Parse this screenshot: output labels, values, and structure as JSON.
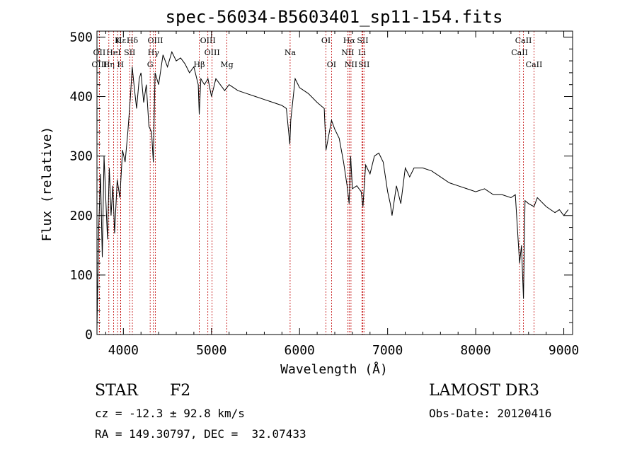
{
  "chart_data": {
    "type": "line",
    "title": "spec-56034-B5603401_sp11-154.fits",
    "xlabel": "Wavelength (Å)",
    "ylabel": "Flux (relative)",
    "xlim": [
      3700,
      9100
    ],
    "ylim": [
      0,
      510
    ],
    "xticks": [
      4000,
      5000,
      6000,
      7000,
      8000,
      9000
    ],
    "yticks": [
      0,
      100,
      200,
      300,
      400,
      500
    ],
    "grid": false,
    "line_color": "#000000",
    "marker_color": "#c00000",
    "series": [
      {
        "x": [
          3700,
          3720,
          3740,
          3760,
          3780,
          3800,
          3820,
          3840,
          3860,
          3880,
          3900,
          3930,
          3960,
          3990,
          4020,
          4050,
          4080,
          4100,
          4120,
          4150,
          4180,
          4200,
          4230,
          4260,
          4290,
          4320,
          4340,
          4360,
          4400,
          4450,
          4500,
          4550,
          4600,
          4650,
          4700,
          4750,
          4800,
          4850,
          4861,
          4880,
          4920,
          4960,
          5000,
          5050,
          5100,
          5150,
          5200,
          5300,
          5400,
          5500,
          5600,
          5700,
          5800,
          5850,
          5890,
          5900,
          5950,
          6000,
          6100,
          6200,
          6280,
          6300,
          6363,
          6400,
          6450,
          6500,
          6540,
          6563,
          6580,
          6600,
          6650,
          6700,
          6720,
          6750,
          6800,
          6850,
          6900,
          6950,
          7000,
          7030,
          7050,
          7100,
          7150,
          7200,
          7250,
          7300,
          7400,
          7500,
          7600,
          7700,
          7800,
          7900,
          8000,
          8100,
          8200,
          8300,
          8400,
          8450,
          8498,
          8520,
          8542,
          8560,
          8600,
          8662,
          8700,
          8800,
          8900,
          8950,
          9000,
          9050
        ],
        "y": [
          10,
          180,
          270,
          130,
          300,
          230,
          160,
          280,
          200,
          250,
          170,
          260,
          230,
          310,
          290,
          340,
          400,
          450,
          420,
          380,
          430,
          440,
          390,
          420,
          350,
          340,
          290,
          440,
          420,
          470,
          450,
          475,
          460,
          465,
          455,
          440,
          450,
          420,
          370,
          430,
          420,
          430,
          400,
          430,
          420,
          410,
          420,
          410,
          405,
          400,
          395,
          390,
          385,
          380,
          320,
          360,
          430,
          415,
          405,
          390,
          380,
          310,
          360,
          345,
          330,
          290,
          250,
          220,
          300,
          245,
          250,
          240,
          215,
          285,
          270,
          300,
          305,
          290,
          240,
          220,
          200,
          250,
          220,
          280,
          265,
          280,
          280,
          275,
          265,
          255,
          250,
          245,
          240,
          245,
          235,
          235,
          230,
          235,
          120,
          150,
          60,
          225,
          220,
          215,
          230,
          215,
          205,
          210,
          200,
          210
        ]
      }
    ],
    "line_markers": [
      {
        "label": "Hδ",
        "x": 4102,
        "row": 0
      },
      {
        "label": "OII",
        "x": 3727,
        "row": 1
      },
      {
        "label": "OIII",
        "x": 3727,
        "row": 2
      },
      {
        "label": "Hη",
        "x": 3835,
        "row": 2
      },
      {
        "label": "K",
        "x": 3934,
        "row": 0
      },
      {
        "label": "HeI",
        "x": 3889,
        "row": 1
      },
      {
        "label": "H",
        "x": 3968,
        "row": 2
      },
      {
        "label": "SII",
        "x": 4072,
        "row": 1
      },
      {
        "label": "Hε",
        "x": 3970,
        "row": 0
      },
      {
        "label": "OIII",
        "x": 4363,
        "row": 0
      },
      {
        "label": "Hγ",
        "x": 4341,
        "row": 1
      },
      {
        "label": "G",
        "x": 4304,
        "row": 2
      },
      {
        "label": "Hβ",
        "x": 4861,
        "row": 2
      },
      {
        "label": "OIII",
        "x": 4959,
        "row": 0
      },
      {
        "label": "OIII",
        "x": 5007,
        "row": 1
      },
      {
        "label": "Mg",
        "x": 5175,
        "row": 2
      },
      {
        "label": "Na",
        "x": 5893,
        "row": 1
      },
      {
        "label": "OI",
        "x": 6300,
        "row": 0
      },
      {
        "label": "OI",
        "x": 6363,
        "row": 2
      },
      {
        "label": "Hα",
        "x": 6563,
        "row": 0
      },
      {
        "label": "NII",
        "x": 6548,
        "row": 1
      },
      {
        "label": "NII",
        "x": 6584,
        "row": 2
      },
      {
        "label": "SII",
        "x": 6717,
        "row": 0
      },
      {
        "label": "Li",
        "x": 6708,
        "row": 1
      },
      {
        "label": "SII",
        "x": 6731,
        "row": 2
      },
      {
        "label": "CaII",
        "x": 8542,
        "row": 0
      },
      {
        "label": "CaII",
        "x": 8498,
        "row": 1
      },
      {
        "label": "CaII",
        "x": 8662,
        "row": 2
      }
    ]
  },
  "info": {
    "object_type": "STAR",
    "subclass": "F2",
    "survey": "LAMOST DR3",
    "cz": "cz = -12.3 ± 92.8 km/s",
    "obs_date": "Obs-Date: 20120416",
    "coords": "RA = 149.30797, DEC =  32.07433"
  }
}
